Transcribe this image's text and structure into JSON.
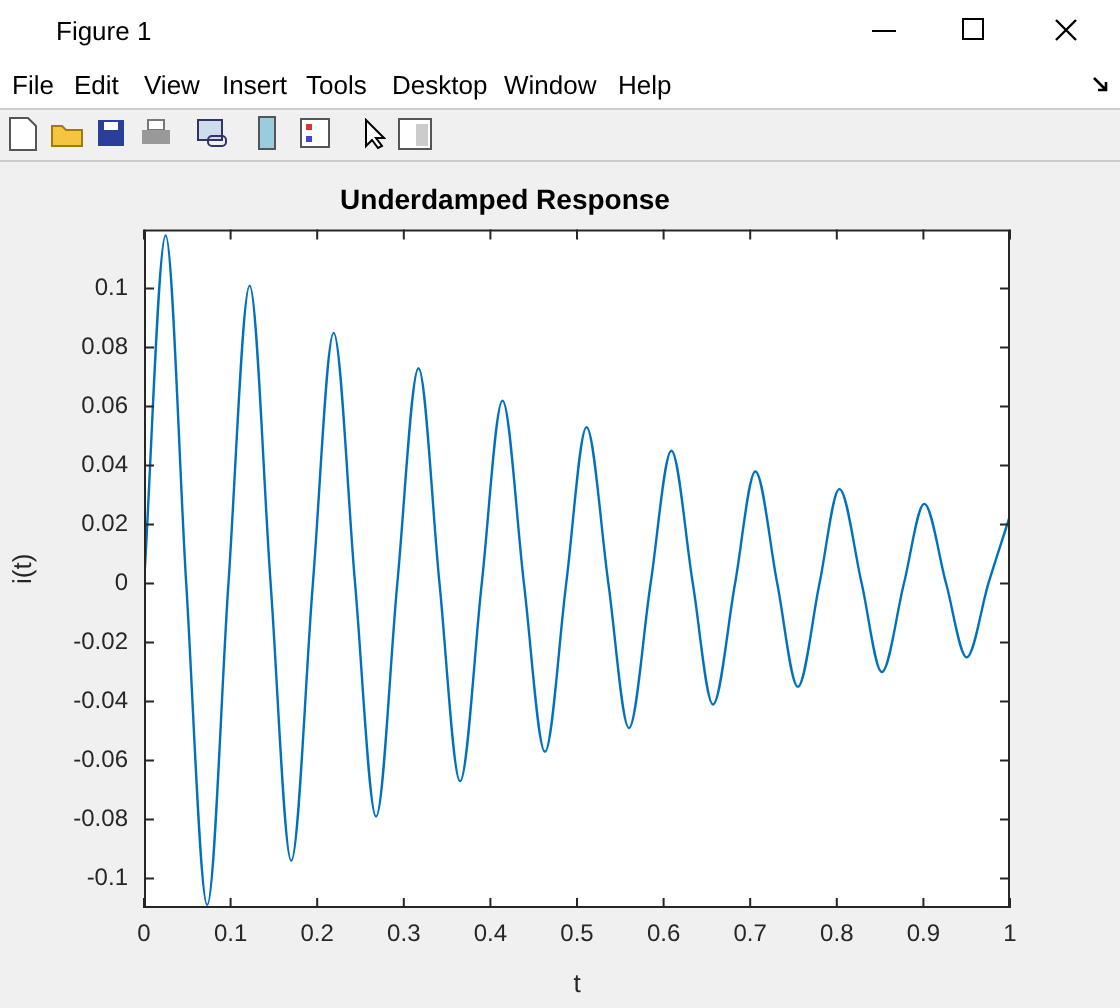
{
  "chart_data": {
    "type": "line",
    "title": "Underdamped Response",
    "xlabel": "t",
    "ylabel": "i(t)",
    "annotations": [
      "Figure 1",
      "File",
      "Edit",
      "View",
      "Insert",
      "Tools",
      "Desktop",
      "Window",
      "Help"
    ],
    "x": [
      0,
      0.025,
      0.04875,
      0.073,
      0.0975,
      0.122,
      0.14625,
      0.17,
      0.195,
      0.219,
      0.24375,
      0.268,
      0.2925,
      0.317,
      0.34125,
      0.365,
      0.39,
      0.414,
      0.43875,
      0.463,
      0.4875,
      0.511,
      0.53625,
      0.56,
      0.585,
      0.609,
      0.63375,
      0.657,
      0.6825,
      0.706,
      0.73125,
      0.755,
      0.78,
      0.803,
      0.82875,
      0.852,
      0.8775,
      0.901,
      0.92625,
      0.95,
      0.975,
      1
    ],
    "series": [
      {
        "color": "#0072bd",
        "values": [
          0,
          0.118,
          0,
          -0.109,
          0,
          0.101,
          0,
          -0.094,
          0,
          0.085,
          0,
          -0.079,
          0,
          0.073,
          0,
          -0.067,
          0,
          0.062,
          0,
          -0.057,
          0,
          0.053,
          0,
          -0.049,
          0,
          0.045,
          0,
          -0.041,
          0,
          0.038,
          0,
          -0.035,
          0,
          0.032,
          0,
          -0.03,
          0,
          0.027,
          0,
          -0.025,
          0,
          0.023
        ]
      }
    ],
    "xlim": [
      0,
      1
    ],
    "xticks": [
      0,
      0.1,
      0.2,
      0.3,
      0.4,
      0.5,
      0.6,
      0.7,
      0.8,
      0.9,
      1
    ],
    "ylim": [
      -0.11,
      0.12
    ],
    "yticks": [
      -0.1,
      -0.08,
      -0.06,
      -0.04,
      -0.02,
      0,
      0.02,
      0.04,
      0.06,
      0.08,
      0.1
    ],
    "grid": false,
    "legend": false,
    "marker": "none",
    "line_style": "solid"
  }
}
